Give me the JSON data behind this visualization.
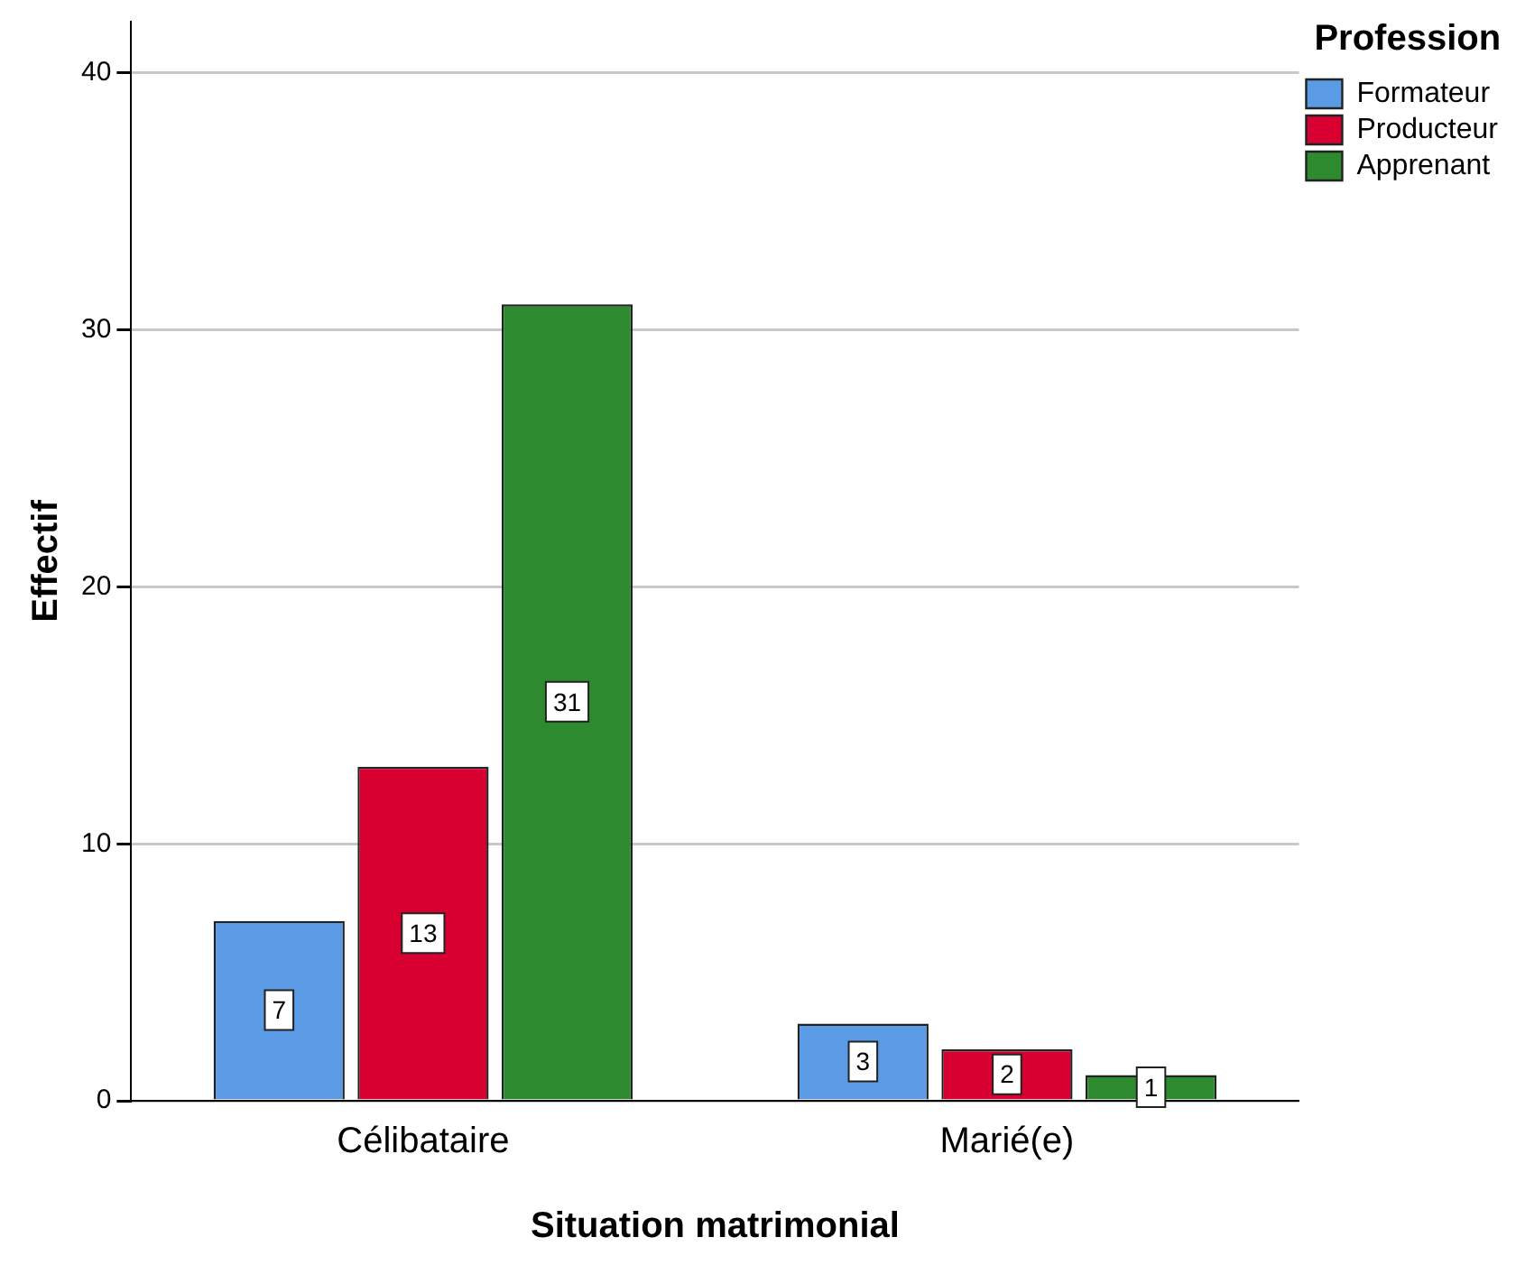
{
  "chart_data": {
    "type": "bar",
    "xlabel": "Situation matrimonial",
    "ylabel": "Effectif",
    "legend_title": "Profession",
    "categories": [
      "Célibataire",
      "Marié(e)"
    ],
    "series": [
      {
        "name": "Formateur",
        "color": "#5b9be6",
        "values": [
          7,
          3
        ]
      },
      {
        "name": "Producteur",
        "color": "#d80030",
        "values": [
          13,
          2
        ]
      },
      {
        "name": "Apprenant",
        "color": "#2e8a2e",
        "values": [
          31,
          1
        ]
      }
    ],
    "ylim": [
      0,
      42
    ],
    "yticks": [
      0,
      10,
      20,
      30,
      40
    ],
    "grid": "y",
    "legend": "top right",
    "data_labels": true
  }
}
